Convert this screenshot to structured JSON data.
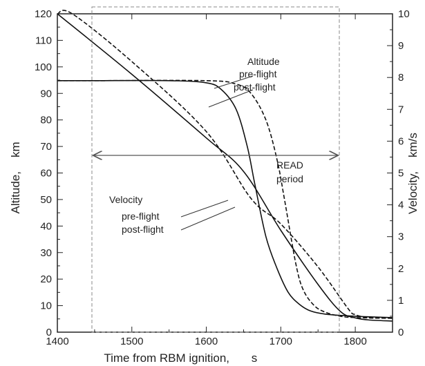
{
  "chart_data": {
    "type": "line",
    "xlabel": "Time from RBM ignition,",
    "xunit": "s",
    "ylabel": "Altitude,",
    "yunit": "km",
    "y2label": "Velocity,",
    "y2unit": "km/s",
    "xlim": [
      1400,
      1850
    ],
    "ylim": [
      0,
      120
    ],
    "y2lim": [
      0,
      10
    ],
    "xticks": [
      1400,
      1500,
      1600,
      1700,
      1800
    ],
    "yticks": [
      0,
      10,
      20,
      30,
      40,
      50,
      60,
      70,
      80,
      90,
      100,
      110,
      120
    ],
    "y2ticks": [
      0,
      1,
      2,
      3,
      4,
      5,
      6,
      7,
      8,
      9,
      10
    ],
    "grid": false,
    "series": [
      {
        "axis": "left",
        "style": "solid",
        "x": [
          1400,
          1450,
          1550,
          1600,
          1620,
          1640,
          1655,
          1665,
          1680,
          1695,
          1710,
          1725,
          1740,
          1760,
          1800,
          1850
        ],
        "y": [
          94.8,
          94.8,
          94.8,
          94,
          91.5,
          84,
          70,
          56,
          36,
          24,
          15,
          10.5,
          8,
          6.8,
          6,
          5.5
        ]
      },
      {
        "axis": "left",
        "style": "dashed",
        "x": [
          1400,
          1450,
          1600,
          1640,
          1660,
          1680,
          1695,
          1705,
          1720,
          1730,
          1745,
          1760,
          1780,
          1800,
          1850
        ],
        "y": [
          94.8,
          94.8,
          94.8,
          93.5,
          90,
          80,
          65,
          50,
          26,
          16,
          10,
          7.5,
          6,
          5.5,
          5.2
        ]
      },
      {
        "axis": "right",
        "style": "solid",
        "x": [
          1400,
          1500,
          1600,
          1650,
          1700,
          1750,
          1780,
          1800,
          1820,
          1850
        ],
        "y": [
          10,
          8.1,
          6.1,
          5.05,
          3.2,
          1.5,
          0.65,
          0.45,
          0.38,
          0.35
        ]
      },
      {
        "axis": "right",
        "style": "dashed",
        "x": [
          1400,
          1420,
          1500,
          1600,
          1660,
          1700,
          1750,
          1790,
          1800,
          1820,
          1850
        ],
        "y": [
          10,
          10,
          8.5,
          6.3,
          4.2,
          3.4,
          2.05,
          0.75,
          0.55,
          0.45,
          0.45
        ]
      }
    ],
    "read_period": {
      "x_start": 1450,
      "x_end": 1800,
      "arrow_y": 66
    },
    "annotations": {
      "altitude": {
        "title": "Altitude",
        "pre": "pre-flight",
        "post": "post-flight"
      },
      "velocity": {
        "title": "Velocity",
        "pre": "pre-flight",
        "post": "post-flight"
      },
      "read": {
        "line1": "READ",
        "line2": "period"
      }
    }
  }
}
